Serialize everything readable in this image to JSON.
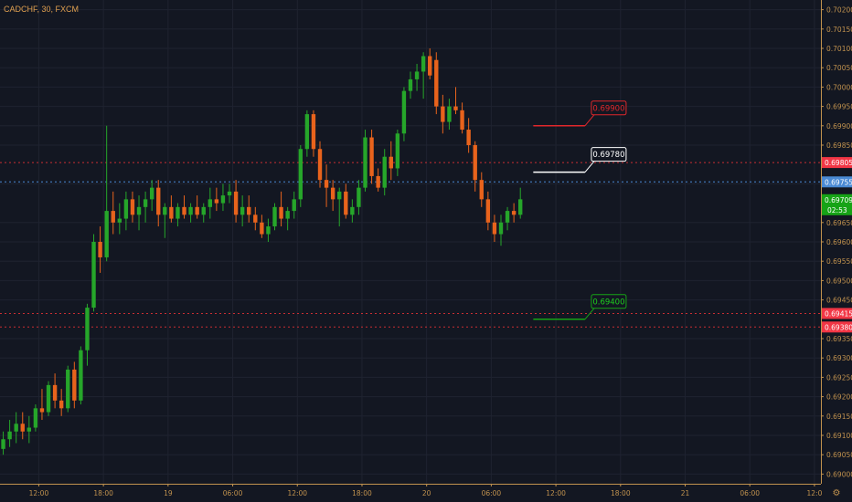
{
  "symbol": {
    "title": "CADCHF, 30, FXCM"
  },
  "colors": {
    "background": "#131722",
    "grid": "#1f2330",
    "axis_text": "#c1924e",
    "axis_line": "#c1924e",
    "bull": "#26a62a",
    "bear": "#e8631c",
    "dotted_red": "#c92e33",
    "dotted_blue": "#4a8ad4",
    "badge_red": "#f23645",
    "badge_blue": "#4a8ad4",
    "badge_green": "#16a316"
  },
  "chart_data": {
    "type": "candlestick",
    "title": "CADCHF, 30, FXCM",
    "ylim": [
      0.68975,
      0.70225
    ],
    "xlim": [
      -0.5,
      126.5
    ],
    "y_ticks": [
      {
        "value": 0.702,
        "label": "0.70200"
      },
      {
        "value": 0.7015,
        "label": "0.70150"
      },
      {
        "value": 0.701,
        "label": "0.70100"
      },
      {
        "value": 0.7005,
        "label": "0.70050"
      },
      {
        "value": 0.7,
        "label": "0.70000"
      },
      {
        "value": 0.6995,
        "label": "0.69950"
      },
      {
        "value": 0.699,
        "label": "0.69900"
      },
      {
        "value": 0.6985,
        "label": "0.69850"
      },
      {
        "value": 0.6975,
        "label": "0.69750"
      },
      {
        "value": 0.6965,
        "label": "0.69650"
      },
      {
        "value": 0.696,
        "label": "0.69600"
      },
      {
        "value": 0.6955,
        "label": "0.69550"
      },
      {
        "value": 0.695,
        "label": "0.69500"
      },
      {
        "value": 0.6945,
        "label": "0.69450"
      },
      {
        "value": 0.6935,
        "label": "0.69350"
      },
      {
        "value": 0.693,
        "label": "0.69300"
      },
      {
        "value": 0.6925,
        "label": "0.69250"
      },
      {
        "value": 0.692,
        "label": "0.69200"
      },
      {
        "value": 0.6915,
        "label": "0.69150"
      },
      {
        "value": 0.691,
        "label": "0.69100"
      },
      {
        "value": 0.6905,
        "label": "0.69050"
      },
      {
        "value": 0.69,
        "label": "0.69000"
      }
    ],
    "x_ticks": [
      {
        "bar": 5.5,
        "label": "12:00"
      },
      {
        "bar": 15.5,
        "label": "18:00"
      },
      {
        "bar": 25.5,
        "label": "19"
      },
      {
        "bar": 35.5,
        "label": "06:00"
      },
      {
        "bar": 45.5,
        "label": "12:00"
      },
      {
        "bar": 55.5,
        "label": "18:00"
      },
      {
        "bar": 65.5,
        "label": "20"
      },
      {
        "bar": 75.5,
        "label": "06:00"
      },
      {
        "bar": 85.5,
        "label": "12:00"
      },
      {
        "bar": 95.5,
        "label": "18:00"
      },
      {
        "bar": 105.5,
        "label": "21"
      },
      {
        "bar": 115.5,
        "label": "06:00"
      },
      {
        "bar": 125.5,
        "label": "12:0"
      }
    ],
    "candles": [
      {
        "o": 0.69065,
        "h": 0.6911,
        "l": 0.6905,
        "c": 0.6909
      },
      {
        "o": 0.6909,
        "h": 0.6914,
        "l": 0.6907,
        "c": 0.6911
      },
      {
        "o": 0.6911,
        "h": 0.6916,
        "l": 0.6908,
        "c": 0.6913
      },
      {
        "o": 0.6913,
        "h": 0.6916,
        "l": 0.6909,
        "c": 0.6911
      },
      {
        "o": 0.6911,
        "h": 0.6915,
        "l": 0.6908,
        "c": 0.6912
      },
      {
        "o": 0.6912,
        "h": 0.6918,
        "l": 0.6911,
        "c": 0.6917
      },
      {
        "o": 0.6917,
        "h": 0.6922,
        "l": 0.6914,
        "c": 0.6916
      },
      {
        "o": 0.6916,
        "h": 0.6924,
        "l": 0.6915,
        "c": 0.6923
      },
      {
        "o": 0.6923,
        "h": 0.6926,
        "l": 0.6917,
        "c": 0.6919
      },
      {
        "o": 0.6919,
        "h": 0.6922,
        "l": 0.6915,
        "c": 0.6917
      },
      {
        "o": 0.6917,
        "h": 0.6928,
        "l": 0.6916,
        "c": 0.6927
      },
      {
        "o": 0.6927,
        "h": 0.6929,
        "l": 0.6917,
        "c": 0.6919
      },
      {
        "o": 0.6919,
        "h": 0.6933,
        "l": 0.6918,
        "c": 0.6932
      },
      {
        "o": 0.6932,
        "h": 0.6944,
        "l": 0.6928,
        "c": 0.6943
      },
      {
        "o": 0.6943,
        "h": 0.6962,
        "l": 0.6942,
        "c": 0.696
      },
      {
        "o": 0.696,
        "h": 0.6964,
        "l": 0.6952,
        "c": 0.6956
      },
      {
        "o": 0.6956,
        "h": 0.699,
        "l": 0.6955,
        "c": 0.6968
      },
      {
        "o": 0.6968,
        "h": 0.6973,
        "l": 0.6962,
        "c": 0.6965
      },
      {
        "o": 0.6965,
        "h": 0.697,
        "l": 0.6962,
        "c": 0.6966
      },
      {
        "o": 0.6966,
        "h": 0.6973,
        "l": 0.6963,
        "c": 0.6971
      },
      {
        "o": 0.6971,
        "h": 0.6973,
        "l": 0.6965,
        "c": 0.6967
      },
      {
        "o": 0.6967,
        "h": 0.6972,
        "l": 0.6963,
        "c": 0.6969
      },
      {
        "o": 0.6969,
        "h": 0.6973,
        "l": 0.6965,
        "c": 0.6971
      },
      {
        "o": 0.6971,
        "h": 0.6976,
        "l": 0.6968,
        "c": 0.6974
      },
      {
        "o": 0.6974,
        "h": 0.6976,
        "l": 0.6964,
        "c": 0.6967
      },
      {
        "o": 0.6967,
        "h": 0.697,
        "l": 0.6961,
        "c": 0.6969
      },
      {
        "o": 0.6969,
        "h": 0.6972,
        "l": 0.6965,
        "c": 0.6966
      },
      {
        "o": 0.6966,
        "h": 0.697,
        "l": 0.6964,
        "c": 0.6969
      },
      {
        "o": 0.6969,
        "h": 0.6972,
        "l": 0.6966,
        "c": 0.6967
      },
      {
        "o": 0.6967,
        "h": 0.697,
        "l": 0.6965,
        "c": 0.6969
      },
      {
        "o": 0.6969,
        "h": 0.6972,
        "l": 0.6966,
        "c": 0.6967
      },
      {
        "o": 0.6967,
        "h": 0.697,
        "l": 0.6965,
        "c": 0.6969
      },
      {
        "o": 0.6969,
        "h": 0.6974,
        "l": 0.6966,
        "c": 0.6971
      },
      {
        "o": 0.6971,
        "h": 0.6974,
        "l": 0.6968,
        "c": 0.697
      },
      {
        "o": 0.697,
        "h": 0.6975,
        "l": 0.6968,
        "c": 0.6972
      },
      {
        "o": 0.6972,
        "h": 0.6975,
        "l": 0.697,
        "c": 0.6973
      },
      {
        "o": 0.6973,
        "h": 0.6976,
        "l": 0.6965,
        "c": 0.6967
      },
      {
        "o": 0.6967,
        "h": 0.6972,
        "l": 0.6964,
        "c": 0.6969
      },
      {
        "o": 0.6969,
        "h": 0.6972,
        "l": 0.6965,
        "c": 0.6967
      },
      {
        "o": 0.6967,
        "h": 0.6969,
        "l": 0.6963,
        "c": 0.6965
      },
      {
        "o": 0.6965,
        "h": 0.6967,
        "l": 0.6961,
        "c": 0.6962
      },
      {
        "o": 0.6962,
        "h": 0.6966,
        "l": 0.696,
        "c": 0.6964
      },
      {
        "o": 0.6964,
        "h": 0.697,
        "l": 0.6963,
        "c": 0.6969
      },
      {
        "o": 0.6969,
        "h": 0.6973,
        "l": 0.6964,
        "c": 0.6966
      },
      {
        "o": 0.6966,
        "h": 0.6969,
        "l": 0.6963,
        "c": 0.6968
      },
      {
        "o": 0.6968,
        "h": 0.6973,
        "l": 0.6966,
        "c": 0.6971
      },
      {
        "o": 0.6971,
        "h": 0.6985,
        "l": 0.6969,
        "c": 0.6984
      },
      {
        "o": 0.6984,
        "h": 0.6994,
        "l": 0.6982,
        "c": 0.6993
      },
      {
        "o": 0.6993,
        "h": 0.6994,
        "l": 0.6982,
        "c": 0.6984
      },
      {
        "o": 0.6984,
        "h": 0.6986,
        "l": 0.6974,
        "c": 0.6976
      },
      {
        "o": 0.6976,
        "h": 0.698,
        "l": 0.6969,
        "c": 0.6974
      },
      {
        "o": 0.6974,
        "h": 0.6976,
        "l": 0.6968,
        "c": 0.6971
      },
      {
        "o": 0.6971,
        "h": 0.6974,
        "l": 0.6964,
        "c": 0.6973
      },
      {
        "o": 0.6973,
        "h": 0.6975,
        "l": 0.6966,
        "c": 0.6967
      },
      {
        "o": 0.6967,
        "h": 0.6971,
        "l": 0.6965,
        "c": 0.6969
      },
      {
        "o": 0.6969,
        "h": 0.6976,
        "l": 0.6967,
        "c": 0.6974
      },
      {
        "o": 0.6974,
        "h": 0.6989,
        "l": 0.6973,
        "c": 0.6987
      },
      {
        "o": 0.6987,
        "h": 0.6989,
        "l": 0.6975,
        "c": 0.6977
      },
      {
        "o": 0.6977,
        "h": 0.6979,
        "l": 0.6973,
        "c": 0.6974
      },
      {
        "o": 0.6974,
        "h": 0.6984,
        "l": 0.6972,
        "c": 0.6982
      },
      {
        "o": 0.6982,
        "h": 0.6986,
        "l": 0.6976,
        "c": 0.6979
      },
      {
        "o": 0.6979,
        "h": 0.6989,
        "l": 0.6977,
        "c": 0.6988
      },
      {
        "o": 0.6988,
        "h": 0.7,
        "l": 0.6986,
        "c": 0.6999
      },
      {
        "o": 0.6999,
        "h": 0.7004,
        "l": 0.6997,
        "c": 0.7002
      },
      {
        "o": 0.7002,
        "h": 0.7006,
        "l": 0.6999,
        "c": 0.7004
      },
      {
        "o": 0.7004,
        "h": 0.7009,
        "l": 0.6997,
        "c": 0.7008
      },
      {
        "o": 0.7008,
        "h": 0.701,
        "l": 0.7002,
        "c": 0.7003
      },
      {
        "o": 0.7007,
        "h": 0.7009,
        "l": 0.6993,
        "c": 0.6995
      },
      {
        "o": 0.6995,
        "h": 0.6998,
        "l": 0.6988,
        "c": 0.6991
      },
      {
        "o": 0.6991,
        "h": 0.6997,
        "l": 0.6989,
        "c": 0.6995
      },
      {
        "o": 0.6995,
        "h": 0.7,
        "l": 0.6993,
        "c": 0.6994
      },
      {
        "o": 0.6994,
        "h": 0.6996,
        "l": 0.6988,
        "c": 0.6989
      },
      {
        "o": 0.6989,
        "h": 0.6992,
        "l": 0.6983,
        "c": 0.6985
      },
      {
        "o": 0.6985,
        "h": 0.6986,
        "l": 0.6973,
        "c": 0.6976
      },
      {
        "o": 0.6976,
        "h": 0.6978,
        "l": 0.6969,
        "c": 0.6971
      },
      {
        "o": 0.6971,
        "h": 0.6973,
        "l": 0.6963,
        "c": 0.6965
      },
      {
        "o": 0.6965,
        "h": 0.6967,
        "l": 0.696,
        "c": 0.6962
      },
      {
        "o": 0.6962,
        "h": 0.6967,
        "l": 0.6959,
        "c": 0.6965
      },
      {
        "o": 0.6965,
        "h": 0.6969,
        "l": 0.6963,
        "c": 0.6968
      },
      {
        "o": 0.6968,
        "h": 0.697,
        "l": 0.6965,
        "c": 0.6967
      },
      {
        "o": 0.6967,
        "h": 0.6974,
        "l": 0.6966,
        "c": 0.6971
      }
    ],
    "annotations": [
      {
        "label": "0.69900",
        "value": 0.699,
        "color": "#e0272b",
        "text_color": "#e0272b"
      },
      {
        "label": "0.69780",
        "value": 0.6978,
        "color": "#ffffff",
        "text_color": "#ffffff"
      },
      {
        "label": "0.69400",
        "value": 0.694,
        "color": "#16a316",
        "text_color": "#1ed11e"
      }
    ],
    "level_lines": [
      {
        "value": 0.69805,
        "label": "0.69805",
        "style": "dotted",
        "color": "#c92e33",
        "badge": "#f23645"
      },
      {
        "value": 0.69755,
        "label": "0.69755",
        "style": "dotted",
        "color": "#4a8ad4",
        "badge": "#4a8ad4"
      },
      {
        "value": 0.69415,
        "label": "0.69415",
        "style": "dotted",
        "color": "#c92e33",
        "badge": "#f23645"
      },
      {
        "value": 0.6938,
        "label": "0.69380",
        "style": "dotted",
        "color": "#c92e33",
        "badge": "#f23645"
      }
    ],
    "current_price": {
      "value": 0.69709,
      "label": "0.69709",
      "countdown": "02:53",
      "badge": "#16a316"
    }
  }
}
